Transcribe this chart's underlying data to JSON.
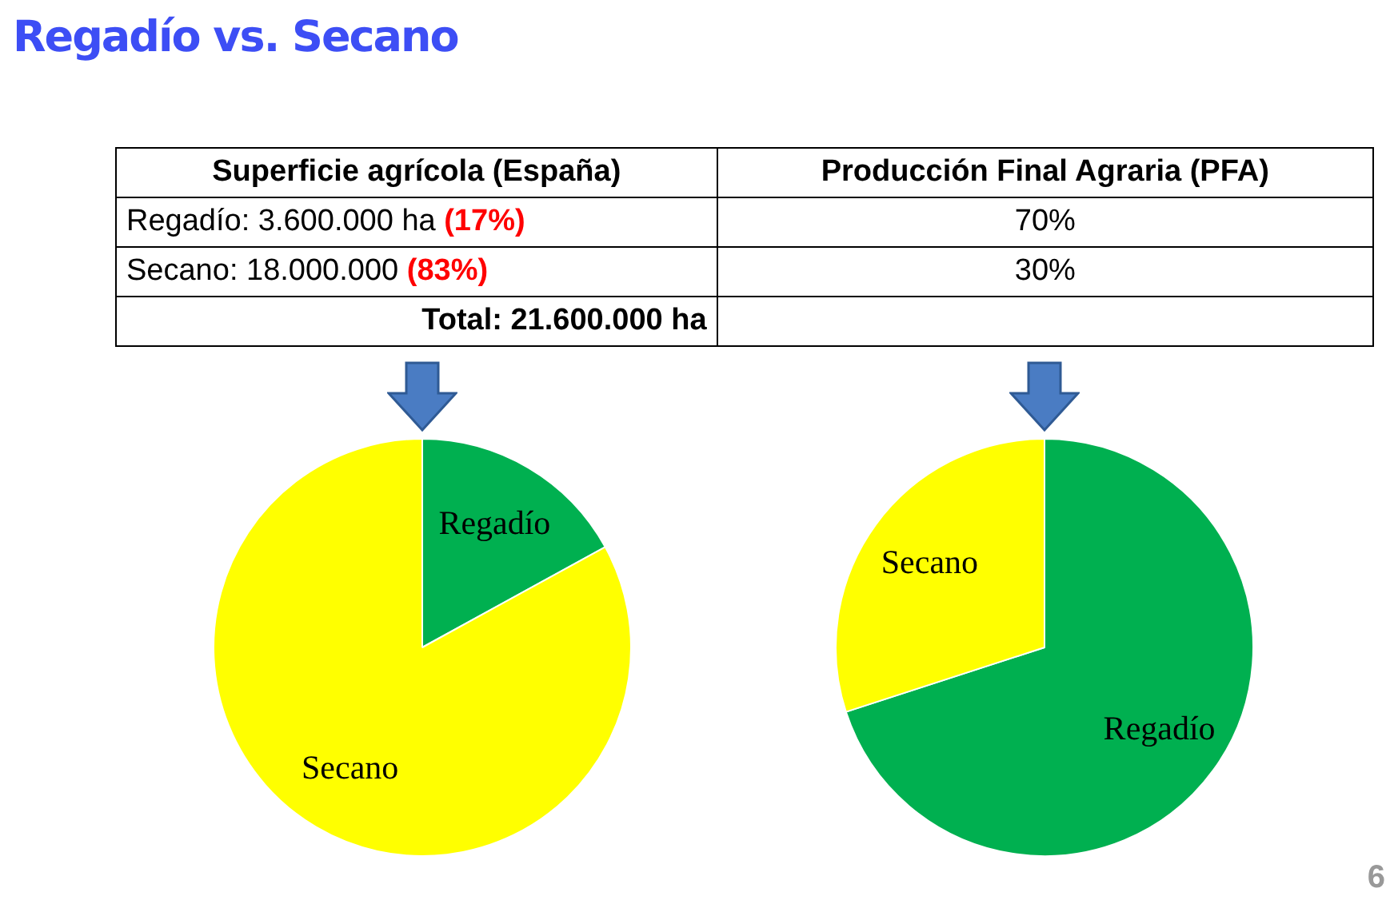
{
  "chart_data": [
    {
      "type": "other",
      "title": "Regadío vs. Secano",
      "annotations": [
        "Superficie agrícola (España)",
        "Producción Final Agraria (PFA)",
        "Regadío: 3.600.000 ha",
        "(17%)",
        "70%",
        "Secano: 18.000.000",
        "(83%)",
        "30%",
        "Total: 21.600.000 ha",
        "6"
      ]
    },
    {
      "type": "pie",
      "categories": [
        "Regadío",
        "Secano"
      ],
      "values": [
        17,
        83
      ],
      "colors": [
        "#00b050",
        "#ffff00"
      ]
    },
    {
      "type": "pie",
      "categories": [
        "Regadío",
        "Secano"
      ],
      "values": [
        70,
        30
      ],
      "colors": [
        "#00b050",
        "#ffff00"
      ]
    }
  ]
}
